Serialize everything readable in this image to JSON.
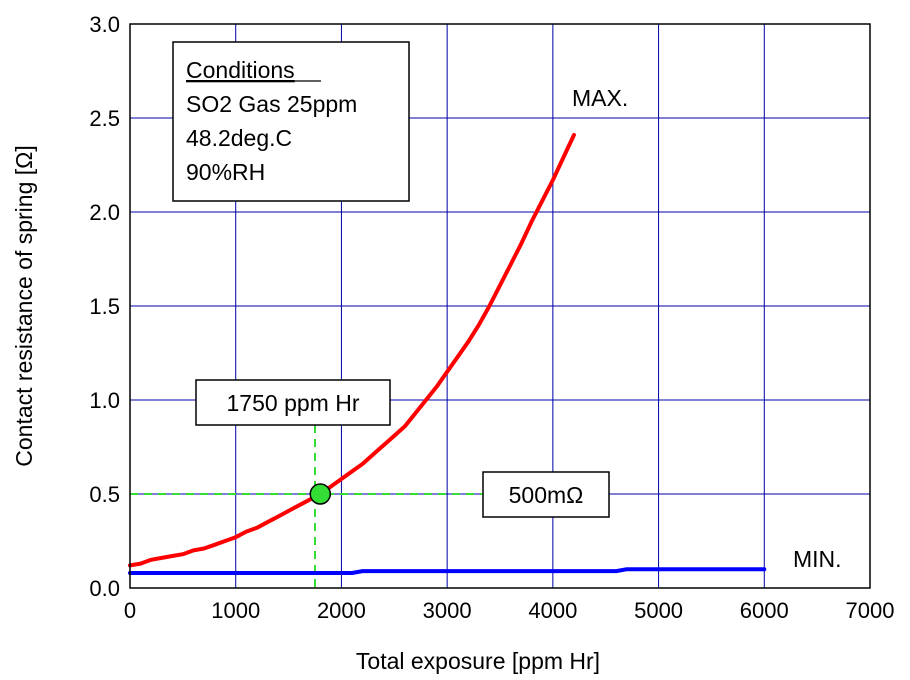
{
  "chart_data": {
    "type": "line",
    "xlabel": "Total exposure [ppm Hr]",
    "ylabel": "Contact resistance of spring [Ω]",
    "xlim": [
      0,
      7000
    ],
    "ylim": [
      0,
      3.0
    ],
    "x_ticks": [
      0,
      1000,
      2000,
      3000,
      4000,
      5000,
      6000,
      7000
    ],
    "x_tick_labels": [
      "0",
      "1000",
      "2000",
      "3000",
      "4000",
      "5000",
      "6000",
      "7000"
    ],
    "y_ticks": [
      0,
      0.5,
      1.0,
      1.5,
      2.0,
      2.5,
      3.0
    ],
    "y_tick_labels": [
      "0.0",
      "0.5",
      "1.0",
      "1.5",
      "2.0",
      "2.5",
      "3.0"
    ],
    "grid": true,
    "grid_color": "#0000aa",
    "series": [
      {
        "name": "MAX.",
        "color": "#ff0000",
        "x": [
          0,
          100,
          200,
          300,
          400,
          500,
          600,
          700,
          800,
          900,
          1000,
          1100,
          1200,
          1300,
          1400,
          1500,
          1600,
          1700,
          1800,
          1900,
          2000,
          2100,
          2200,
          2300,
          2400,
          2500,
          2600,
          2700,
          2800,
          2900,
          3000,
          3100,
          3200,
          3300,
          3400,
          3500,
          3600,
          3700,
          3800,
          3900,
          4000,
          4100,
          4200
        ],
        "y": [
          0.12,
          0.13,
          0.15,
          0.16,
          0.17,
          0.18,
          0.2,
          0.21,
          0.23,
          0.25,
          0.27,
          0.3,
          0.32,
          0.35,
          0.38,
          0.41,
          0.44,
          0.47,
          0.5,
          0.54,
          0.58,
          0.62,
          0.66,
          0.71,
          0.76,
          0.81,
          0.86,
          0.93,
          1.0,
          1.07,
          1.15,
          1.23,
          1.31,
          1.4,
          1.5,
          1.61,
          1.72,
          1.83,
          1.95,
          2.06,
          2.17,
          2.29,
          2.41
        ]
      },
      {
        "name": "MIN.",
        "color": "#0000ff",
        "x": [
          0,
          500,
          1000,
          1500,
          2000,
          2100,
          2200,
          2500,
          3000,
          3500,
          4000,
          4500,
          4600,
          4700,
          5000,
          5500,
          6000
        ],
        "y": [
          0.08,
          0.08,
          0.08,
          0.08,
          0.08,
          0.08,
          0.09,
          0.09,
          0.09,
          0.09,
          0.09,
          0.09,
          0.09,
          0.1,
          0.1,
          0.1,
          0.1
        ]
      }
    ],
    "marker": {
      "x": 1800,
      "y": 0.5,
      "color": "#33dd33"
    },
    "threshold_lines": {
      "x": 1750,
      "y": 0.5,
      "color": "#33dd33"
    },
    "annotations": {
      "exposure_label": "1750 ppm Hr",
      "resistance_label": "500mΩ",
      "max_label": "MAX.",
      "min_label": "MIN."
    },
    "conditions": {
      "title": "Conditions",
      "lines": [
        "SO2 Gas 25ppm",
        "48.2deg.C",
        "90%RH"
      ]
    }
  }
}
